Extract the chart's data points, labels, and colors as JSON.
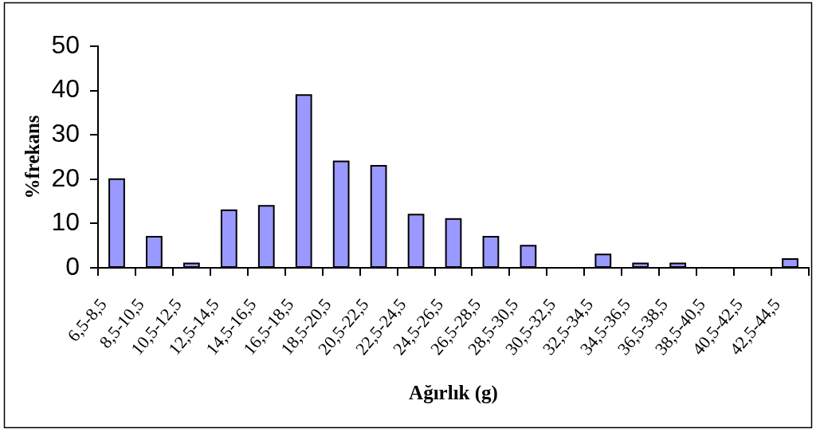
{
  "chart_data": {
    "type": "bar",
    "xlabel": "Ağırlık (g)",
    "ylabel": "%frekans",
    "categories": [
      "6,5-8,5",
      "8,5-10,5",
      "10,5-12,5",
      "12,5-14,5",
      "14,5-16,5",
      "16,5-18,5",
      "18,5-20,5",
      "20,5-22,5",
      "22,5-24,5",
      "24,5-26,5",
      "26,5-28,5",
      "28,5-30,5",
      "30,5-32,5",
      "32,5-34,5",
      "34,5-36,5",
      "36,5-38,5",
      "38,5-40,5",
      "40,5-42,5",
      "42,5-44,5"
    ],
    "values": [
      20,
      7,
      1,
      13,
      14,
      39,
      24,
      23,
      12,
      11,
      7,
      5,
      0,
      3,
      1,
      1,
      0,
      0,
      2
    ],
    "color": "#9999ff",
    "ylim": [
      0,
      50
    ],
    "yticks": [
      0,
      10,
      20,
      30,
      40,
      50
    ]
  }
}
